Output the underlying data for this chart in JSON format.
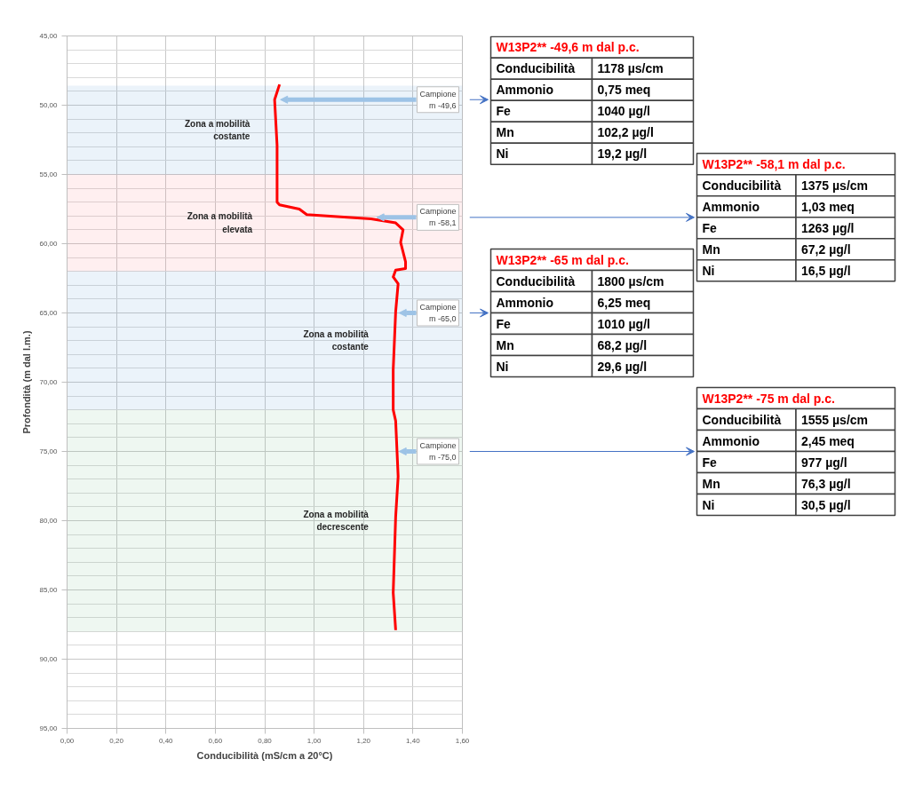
{
  "chart_data": {
    "type": "line",
    "xlabel": "Conducibilità (mS/cm a 20°C)",
    "ylabel": "Profondità (m dal l.m.)",
    "xlim": [
      0,
      1.6
    ],
    "ylim": [
      95,
      45
    ],
    "xticks": [
      {
        "value": 0,
        "label": "0,00"
      },
      {
        "value": 0.2,
        "label": "0,20"
      },
      {
        "value": 0.4,
        "label": "0,40"
      },
      {
        "value": 0.6,
        "label": "0,60"
      },
      {
        "value": 0.8,
        "label": "0,80"
      },
      {
        "value": 1.0,
        "label": "1,00"
      },
      {
        "value": 1.2,
        "label": "1,20"
      },
      {
        "value": 1.4,
        "label": "1,40"
      },
      {
        "value": 1.6,
        "label": "1,60"
      }
    ],
    "yticks": [
      {
        "value": 45,
        "label": "45,00"
      },
      {
        "value": 50,
        "label": "50,00"
      },
      {
        "value": 55,
        "label": "55,00"
      },
      {
        "value": 60,
        "label": "60,00"
      },
      {
        "value": 65,
        "label": "65,00"
      },
      {
        "value": 70,
        "label": "70,00"
      },
      {
        "value": 75,
        "label": "75,00"
      },
      {
        "value": 80,
        "label": "80,00"
      },
      {
        "value": 85,
        "label": "85,00"
      },
      {
        "value": 90,
        "label": "90,00"
      },
      {
        "value": 95,
        "label": "95,00"
      }
    ],
    "grid": true,
    "series": [
      {
        "color": "#ff0000",
        "x": [
          0.86,
          0.84,
          0.85,
          0.85,
          0.85,
          0.85,
          0.86,
          0.94,
          0.97,
          1.23,
          1.33,
          1.36,
          1.35,
          1.37,
          1.37,
          1.33,
          1.32,
          1.34,
          1.33,
          1.32,
          1.32,
          1.33,
          1.34,
          1.33,
          1.32,
          1.33
        ],
        "values": [
          48.5,
          49.6,
          52.9,
          54.4,
          55.0,
          57.0,
          57.2,
          57.5,
          57.9,
          58.2,
          58.5,
          59.0,
          59.9,
          61.3,
          61.8,
          61.9,
          62.4,
          62.9,
          64.9,
          69.1,
          72.0,
          72.8,
          76.8,
          79.7,
          85.2,
          87.9
        ]
      }
    ],
    "bands": [
      {
        "axis": "y",
        "from": 48.6,
        "to": 55,
        "label": "Zona a mobilità costante",
        "color": "#5b9bd5"
      },
      {
        "axis": "y",
        "from": 55,
        "to": 62,
        "label": "Zona a mobilità elevata",
        "color": "#ff7c80"
      },
      {
        "axis": "y",
        "from": 62,
        "to": 72,
        "label": "Zona a mobilità costante",
        "color": "#5b9bd5"
      },
      {
        "axis": "y",
        "from": 72,
        "to": 88,
        "label": "Zona a mobilità decrescente",
        "color": "#70c08c"
      }
    ],
    "annotations": [
      {
        "text": "Campione m -49,6",
        "x": 0.86,
        "y": 49.6
      },
      {
        "text": "Campione m -58,1",
        "x": 1.25,
        "y": 58.1
      },
      {
        "text": "Campione m -65,0",
        "x": 1.34,
        "y": 65.0
      },
      {
        "text": "Campione m -75,0",
        "x": 1.34,
        "y": 75.0
      },
      "W13P2**    -49,6 m dal p.c.",
      "Conducibilità",
      "1178 µs/cm",
      "Ammonio",
      "0,75 meq",
      "Fe",
      "1040 µg/l",
      "Mn",
      "102,2 µg/l",
      "Ni",
      "19,2 µg/l",
      "W13P2**    -58,1 m dal p.c.",
      "Conducibilità",
      "1375 µs/cm",
      "Ammonio",
      "1,03 meq",
      "Fe",
      "1263 µg/l",
      "Mn",
      "67,2 µg/l",
      "Ni",
      "16,5 µg/l",
      "W13P2**    -65 m dal p.c.",
      "Conducibilità",
      "1800 µs/cm",
      "Ammonio",
      "6,25 meq",
      "Fe",
      "1010 µg/l",
      "Mn",
      "68,2 µg/l",
      "Ni",
      "29,6 µg/l",
      "W13P2**    -75 m dal p.c.",
      "Conducibilità",
      "1555 µs/cm",
      "Ammonio",
      "2,45 meq",
      "Fe",
      "977 µg/l",
      "Mn",
      "76,3 µg/l",
      "Ni",
      "30,5 µg/l"
    ]
  }
}
